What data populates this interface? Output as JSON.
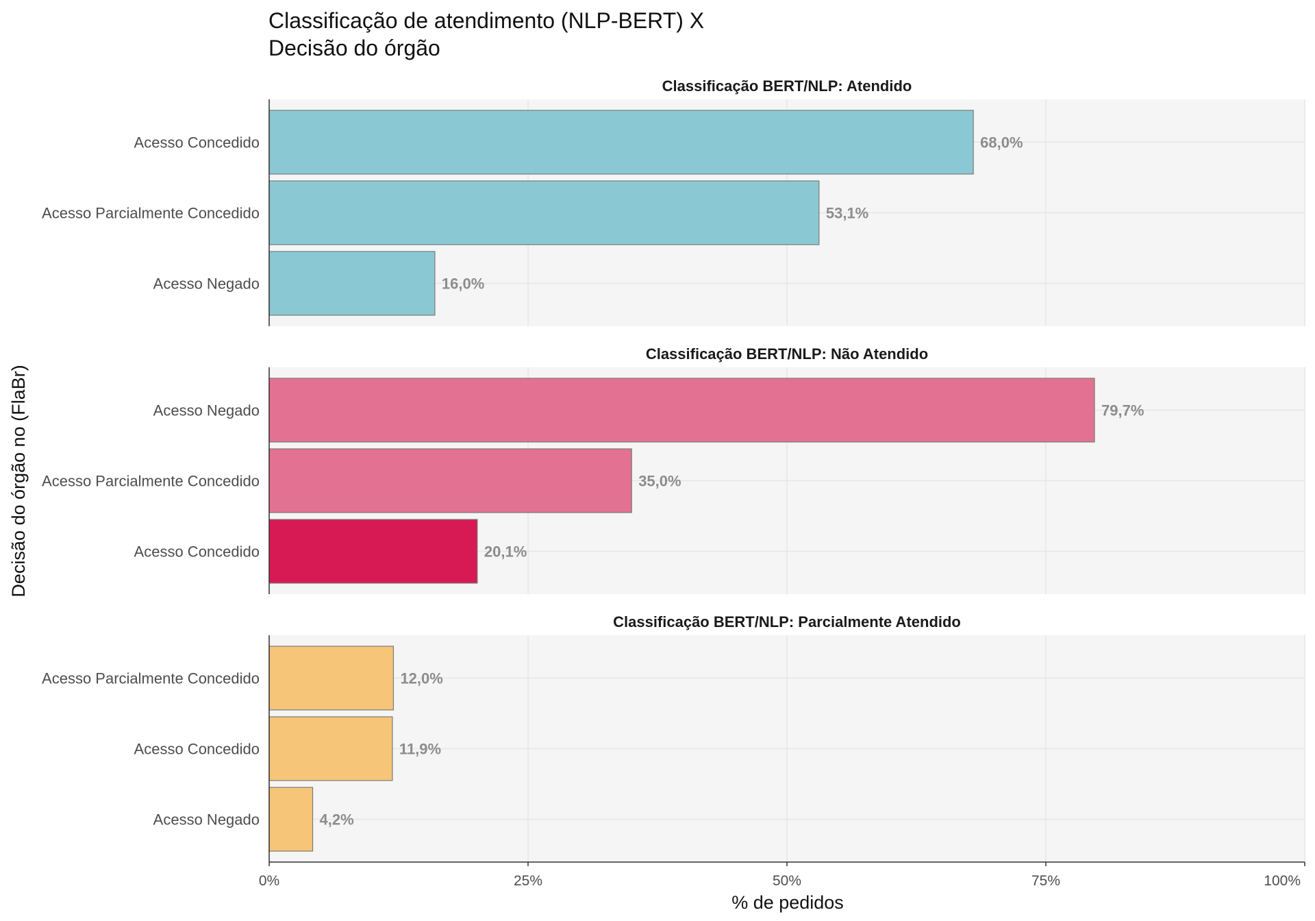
{
  "chart_data": {
    "type": "bar",
    "orientation": "horizontal",
    "title": [
      "Classificação de atendimento (NLP-BERT) X",
      "Decisão do órgão"
    ],
    "xlabel": "% de pedidos",
    "ylabel": "Decisão do órgão no (FlaBr)",
    "xlim": [
      0,
      100
    ],
    "x_ticks": [
      0,
      25,
      50,
      75,
      100
    ],
    "x_tick_labels": [
      "0%",
      "25%",
      "50%",
      "75%",
      "100%"
    ],
    "grid": true,
    "legend": "none",
    "facets": [
      {
        "title": "Classificação BERT/NLP: Atendido",
        "categories": [
          "Acesso Concedido",
          "Acesso Parcialmente Concedido",
          "Acesso Negado"
        ],
        "values": [
          68.0,
          53.1,
          16.0
        ],
        "labels": [
          "68,0%",
          "53,1%",
          "16,0%"
        ],
        "colors": [
          "#8ac9d3",
          "#8ac9d3",
          "#8ac9d3"
        ]
      },
      {
        "title": "Classificação BERT/NLP: Não Atendido",
        "categories": [
          "Acesso Negado",
          "Acesso Parcialmente Concedido",
          "Acesso Concedido"
        ],
        "values": [
          79.7,
          35.0,
          20.1
        ],
        "labels": [
          "79,7%",
          "35,0%",
          "20,1%"
        ],
        "colors": [
          "#e37292",
          "#e37292",
          "#d81a54"
        ]
      },
      {
        "title": "Classificação BERT/NLP: Parcialmente Atendido",
        "categories": [
          "Acesso Parcialmente Concedido",
          "Acesso Concedido",
          "Acesso Negado"
        ],
        "values": [
          12.0,
          11.9,
          4.2
        ],
        "labels": [
          "12,0%",
          "11,9%",
          "4,2%"
        ],
        "colors": [
          "#f7c577",
          "#f7c577",
          "#f7c577"
        ]
      }
    ]
  }
}
